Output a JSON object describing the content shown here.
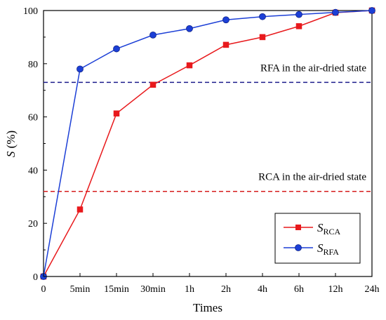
{
  "chart_data": {
    "type": "line",
    "categories": [
      "0",
      "5min",
      "15min",
      "30min",
      "1h",
      "2h",
      "4h",
      "6h",
      "12h",
      "24h"
    ],
    "xlabel": "Times",
    "ylabel_italic": "S",
    "ylabel_unit": " (%)",
    "ylim": [
      0,
      100
    ],
    "yticks": [
      0,
      20,
      40,
      60,
      80,
      100
    ],
    "grid": false,
    "legend_position": "bottom-right",
    "series": [
      {
        "name_main": "S",
        "name_sub": "RCA",
        "color": "#e8191c",
        "marker": "square",
        "values": [
          0,
          25.2,
          61.3,
          72.1,
          79.4,
          87.1,
          90.0,
          94.1,
          99.2,
          100
        ]
      },
      {
        "name_main": "S",
        "name_sub": "RFA",
        "color": "#1c3fd6",
        "marker": "circle",
        "values": [
          0,
          78.0,
          85.6,
          90.8,
          93.2,
          96.5,
          97.7,
          98.5,
          99.3,
          100
        ]
      }
    ],
    "reference_lines": [
      {
        "label": "RFA in the air-dried state",
        "y": 73,
        "color": "#1c1c8c"
      },
      {
        "label": "RCA in the air-dried state",
        "y": 32,
        "color": "#d61c1c"
      }
    ]
  }
}
